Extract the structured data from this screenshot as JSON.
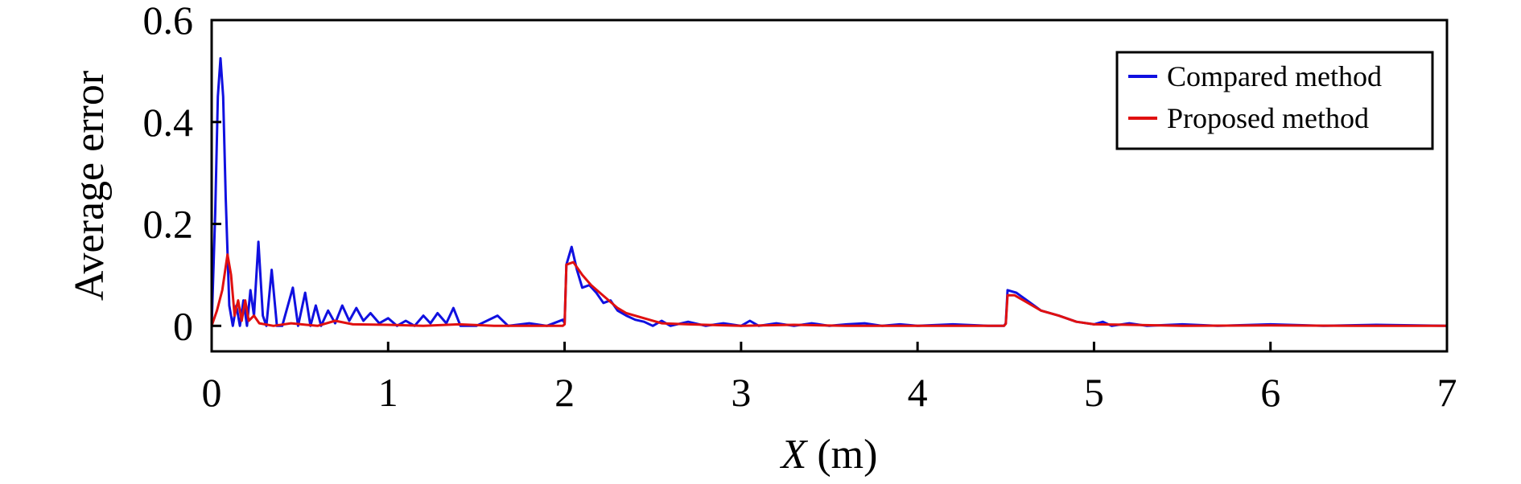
{
  "chart_data": {
    "type": "line",
    "title": "",
    "xlabel_var": "X",
    "xlabel_unit": " (m)",
    "ylabel": "Average error",
    "xlim": [
      0,
      7
    ],
    "ylim": [
      -0.05,
      0.6
    ],
    "x_ticks": [
      0,
      1,
      2,
      3,
      4,
      5,
      6,
      7
    ],
    "y_ticks": [
      0,
      0.2,
      0.4,
      0.6
    ],
    "x_tick_labels": [
      "0",
      "1",
      "2",
      "3",
      "4",
      "5",
      "6",
      "7"
    ],
    "y_tick_labels": [
      "0",
      "0.2",
      "0.4",
      "0.6"
    ],
    "grid": false,
    "legend_position": "top-right",
    "series": [
      {
        "name": "Compared method",
        "color": "#1010e0",
        "points": [
          [
            0,
            0.0
          ],
          [
            0.02,
            0.22
          ],
          [
            0.035,
            0.45
          ],
          [
            0.05,
            0.525
          ],
          [
            0.065,
            0.45
          ],
          [
            0.08,
            0.25
          ],
          [
            0.1,
            0.04
          ],
          [
            0.12,
            0.0
          ],
          [
            0.14,
            0.04
          ],
          [
            0.16,
            0.0
          ],
          [
            0.18,
            0.05
          ],
          [
            0.2,
            0.0
          ],
          [
            0.22,
            0.07
          ],
          [
            0.24,
            0.02
          ],
          [
            0.265,
            0.165
          ],
          [
            0.29,
            0.02
          ],
          [
            0.31,
            0.0
          ],
          [
            0.34,
            0.11
          ],
          [
            0.37,
            0.0
          ],
          [
            0.4,
            0.0
          ],
          [
            0.46,
            0.075
          ],
          [
            0.49,
            0.0
          ],
          [
            0.53,
            0.065
          ],
          [
            0.56,
            0.0
          ],
          [
            0.59,
            0.04
          ],
          [
            0.62,
            0.0
          ],
          [
            0.66,
            0.03
          ],
          [
            0.7,
            0.005
          ],
          [
            0.74,
            0.04
          ],
          [
            0.78,
            0.01
          ],
          [
            0.82,
            0.035
          ],
          [
            0.86,
            0.01
          ],
          [
            0.9,
            0.025
          ],
          [
            0.95,
            0.005
          ],
          [
            1.0,
            0.015
          ],
          [
            1.05,
            0.0
          ],
          [
            1.1,
            0.01
          ],
          [
            1.15,
            0.0
          ],
          [
            1.2,
            0.02
          ],
          [
            1.24,
            0.005
          ],
          [
            1.28,
            0.025
          ],
          [
            1.33,
            0.005
          ],
          [
            1.37,
            0.035
          ],
          [
            1.41,
            0.0
          ],
          [
            1.5,
            0.0
          ],
          [
            1.62,
            0.02
          ],
          [
            1.68,
            0.0
          ],
          [
            1.8,
            0.005
          ],
          [
            1.9,
            0.0
          ],
          [
            1.99,
            0.012
          ],
          [
            2.0,
            0.005
          ],
          [
            2.01,
            0.12
          ],
          [
            2.04,
            0.155
          ],
          [
            2.07,
            0.11
          ],
          [
            2.1,
            0.075
          ],
          [
            2.14,
            0.08
          ],
          [
            2.18,
            0.065
          ],
          [
            2.22,
            0.045
          ],
          [
            2.26,
            0.05
          ],
          [
            2.3,
            0.03
          ],
          [
            2.35,
            0.02
          ],
          [
            2.4,
            0.012
          ],
          [
            2.45,
            0.008
          ],
          [
            2.5,
            0.0
          ],
          [
            2.55,
            0.01
          ],
          [
            2.6,
            0.0
          ],
          [
            2.7,
            0.008
          ],
          [
            2.8,
            0.0
          ],
          [
            2.9,
            0.005
          ],
          [
            3.0,
            0.0
          ],
          [
            3.05,
            0.01
          ],
          [
            3.1,
            0.0
          ],
          [
            3.2,
            0.005
          ],
          [
            3.3,
            0.0
          ],
          [
            3.4,
            0.005
          ],
          [
            3.5,
            0.0
          ],
          [
            3.6,
            0.003
          ],
          [
            3.7,
            0.005
          ],
          [
            3.8,
            0.0
          ],
          [
            3.9,
            0.003
          ],
          [
            4.0,
            0.0
          ],
          [
            4.2,
            0.003
          ],
          [
            4.4,
            0.0
          ],
          [
            4.49,
            0.0
          ],
          [
            4.5,
            0.005
          ],
          [
            4.51,
            0.07
          ],
          [
            4.56,
            0.065
          ],
          [
            4.62,
            0.05
          ],
          [
            4.7,
            0.03
          ],
          [
            4.8,
            0.02
          ],
          [
            4.9,
            0.008
          ],
          [
            5.0,
            0.003
          ],
          [
            5.05,
            0.008
          ],
          [
            5.1,
            0.0
          ],
          [
            5.2,
            0.005
          ],
          [
            5.3,
            0.0
          ],
          [
            5.5,
            0.003
          ],
          [
            5.7,
            0.0
          ],
          [
            6.0,
            0.003
          ],
          [
            6.3,
            0.0
          ],
          [
            6.6,
            0.002
          ],
          [
            7.0,
            0.0
          ]
        ]
      },
      {
        "name": "Proposed method",
        "color": "#e01010",
        "points": [
          [
            0,
            0.0
          ],
          [
            0.03,
            0.03
          ],
          [
            0.06,
            0.07
          ],
          [
            0.09,
            0.14
          ],
          [
            0.11,
            0.1
          ],
          [
            0.13,
            0.02
          ],
          [
            0.15,
            0.05
          ],
          [
            0.17,
            0.01
          ],
          [
            0.19,
            0.05
          ],
          [
            0.21,
            0.01
          ],
          [
            0.24,
            0.02
          ],
          [
            0.27,
            0.005
          ],
          [
            0.35,
            0.0
          ],
          [
            0.45,
            0.005
          ],
          [
            0.6,
            0.0
          ],
          [
            0.7,
            0.01
          ],
          [
            0.8,
            0.003
          ],
          [
            1.0,
            0.002
          ],
          [
            1.2,
            0.0
          ],
          [
            1.4,
            0.003
          ],
          [
            1.6,
            0.0
          ],
          [
            1.8,
            0.0
          ],
          [
            1.99,
            0.0
          ],
          [
            2.0,
            0.003
          ],
          [
            2.01,
            0.12
          ],
          [
            2.05,
            0.125
          ],
          [
            2.1,
            0.1
          ],
          [
            2.15,
            0.08
          ],
          [
            2.2,
            0.065
          ],
          [
            2.25,
            0.05
          ],
          [
            2.3,
            0.035
          ],
          [
            2.35,
            0.025
          ],
          [
            2.45,
            0.015
          ],
          [
            2.55,
            0.005
          ],
          [
            2.7,
            0.003
          ],
          [
            3.0,
            0.0
          ],
          [
            3.3,
            0.002
          ],
          [
            3.6,
            0.0
          ],
          [
            4.0,
            0.0
          ],
          [
            4.49,
            0.0
          ],
          [
            4.5,
            0.004
          ],
          [
            4.51,
            0.06
          ],
          [
            4.55,
            0.06
          ],
          [
            4.6,
            0.05
          ],
          [
            4.7,
            0.03
          ],
          [
            4.8,
            0.02
          ],
          [
            4.9,
            0.008
          ],
          [
            5.0,
            0.003
          ],
          [
            5.2,
            0.002
          ],
          [
            5.5,
            0.0
          ],
          [
            6.0,
            0.001
          ],
          [
            6.5,
            0.0
          ],
          [
            7.0,
            0.0
          ]
        ]
      }
    ]
  }
}
